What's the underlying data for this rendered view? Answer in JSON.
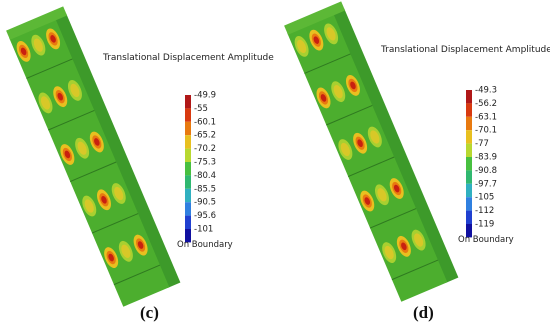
{
  "panels": [
    {
      "legend_title": "Translational Displacement Amplitude",
      "legend_labels": [
        "-49.9",
        "-55",
        "-60.1",
        "-65.2",
        "-70.2",
        "-75.3",
        "-80.4",
        "-85.5",
        "-90.5",
        "-95.6",
        "-101"
      ],
      "boundary_label": "On Boundary",
      "caption": "(c)"
    },
    {
      "legend_title": "Translational Displacement Amplitude",
      "legend_labels": [
        "-49.3",
        "-56.2",
        "-63.1",
        "-70.1",
        "-77",
        "-83.9",
        "-90.8",
        "-97.7",
        "-105",
        "-112",
        "-119"
      ],
      "boundary_label": "On Boundary",
      "caption": "(d)"
    }
  ]
}
